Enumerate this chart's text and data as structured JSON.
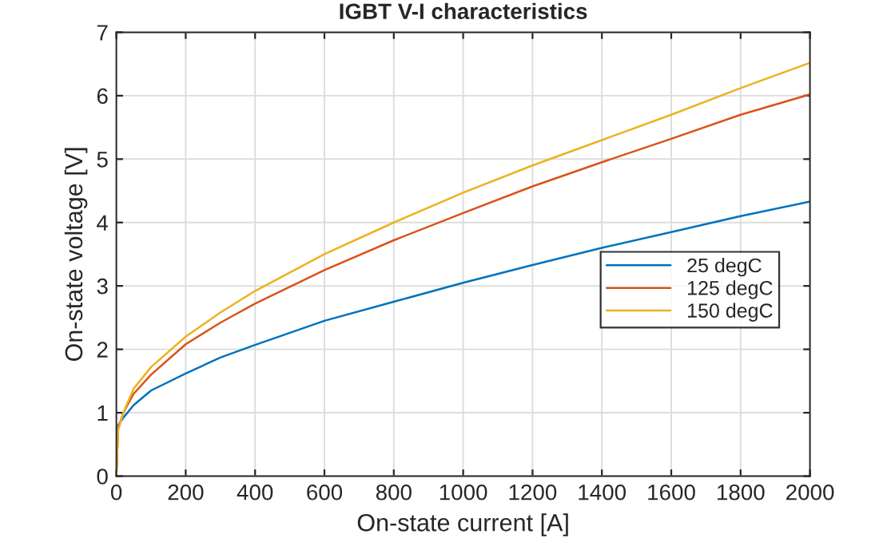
{
  "chart_data": {
    "type": "line",
    "title": "IGBT V-I characteristics",
    "xlabel": "On-state current [A]",
    "ylabel": "On-state voltage [V]",
    "x": [
      0,
      5,
      20,
      50,
      100,
      200,
      300,
      400,
      600,
      800,
      1000,
      1200,
      1400,
      1600,
      1800,
      2000
    ],
    "series": [
      {
        "name": "25 degC",
        "color": "#0072bd",
        "values": [
          0,
          0.8,
          0.92,
          1.12,
          1.35,
          1.62,
          1.87,
          2.07,
          2.45,
          2.75,
          3.05,
          3.33,
          3.6,
          3.85,
          4.1,
          4.33
        ]
      },
      {
        "name": "125 degC",
        "color": "#d95319",
        "values": [
          0,
          0.75,
          1.0,
          1.3,
          1.6,
          2.08,
          2.42,
          2.72,
          3.25,
          3.72,
          4.15,
          4.57,
          4.95,
          5.32,
          5.7,
          6.02
        ]
      },
      {
        "name": "150 degC",
        "color": "#edb120",
        "values": [
          0,
          0.72,
          1.0,
          1.38,
          1.72,
          2.2,
          2.58,
          2.92,
          3.5,
          4.0,
          4.47,
          4.9,
          5.3,
          5.7,
          6.12,
          6.52
        ]
      }
    ],
    "xlim": [
      0,
      2000
    ],
    "ylim": [
      0,
      7
    ],
    "xticks": [
      0,
      200,
      400,
      600,
      800,
      1000,
      1200,
      1400,
      1600,
      1800,
      2000
    ],
    "yticks": [
      0,
      1,
      2,
      3,
      4,
      5,
      6,
      7
    ],
    "grid": true,
    "legend": "right",
    "marker": "none",
    "line_style": "solid"
  }
}
